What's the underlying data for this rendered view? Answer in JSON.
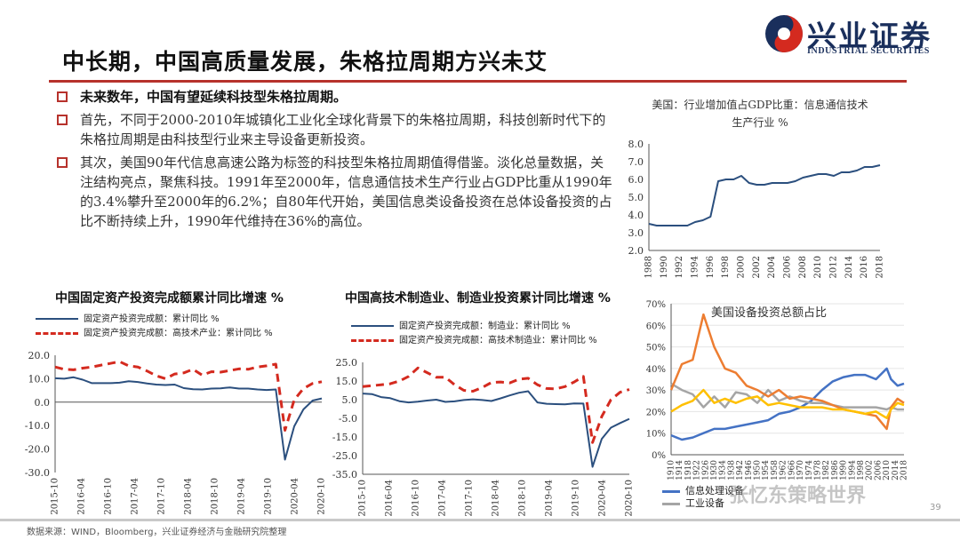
{
  "header": {
    "title": "中长期，中国高质量发展，朱格拉周期方兴未艾",
    "logo_cn": "兴业证券",
    "logo_en": "INDUSTRIAL SECURITIES"
  },
  "bullets": [
    "未来数年，中国有望延续科技型朱格拉周期。",
    "首先，不同于2000-2010年城镇化工业化全球化背景下的朱格拉周期，科技创新时代下的朱格拉周期是由科技型行业来主导设备更新投资。",
    "其次，美国90年代信息高速公路为标签的科技型朱格拉周期值得借鉴。淡化总量数据，关注结构亮点，聚焦科技。1991年至2000年，信息通信技术生产行业占GDP比重从1990年的3.4%攀升至2000年的6.2%；自80年代开始，美国信息类设备投资在总体设备投资的占比不断持续上升，1990年代维持在36%的高位。"
  ],
  "footer": {
    "source": "数据来源：WIND，Bloomberg，兴业证券经济与金融研究院整理",
    "page": "39",
    "watermark": "张忆东策略世界"
  },
  "colors": {
    "navy": "#2b4f7e",
    "red": "#d42a1f",
    "blue": "#4472c4",
    "orange": "#ed7d31",
    "gray": "#a5a5a5",
    "yellow": "#ffc000",
    "accent": "#b7322c"
  },
  "chart_data": [
    {
      "id": "us_ict_gdp",
      "type": "line",
      "title": "美国：行业增加值占GDP比重：信息通信技术生产行业 %",
      "ylim": [
        2.0,
        8.0
      ],
      "yticks": [
        "2.0",
        "3.0",
        "4.0",
        "5.0",
        "6.0",
        "7.0",
        "8.0"
      ],
      "xticks": [
        "1988",
        "1990",
        "1992",
        "1994",
        "1996",
        "1998",
        "2000",
        "2002",
        "2004",
        "2006",
        "2008",
        "2010",
        "2012",
        "2014",
        "2016",
        "2018"
      ],
      "x": [
        1988,
        1989,
        1990,
        1991,
        1992,
        1993,
        1994,
        1995,
        1996,
        1997,
        1998,
        1999,
        2000,
        2001,
        2002,
        2003,
        2004,
        2005,
        2006,
        2007,
        2008,
        2009,
        2010,
        2011,
        2012,
        2013,
        2014,
        2015,
        2016,
        2017,
        2018
      ],
      "values": [
        3.5,
        3.4,
        3.4,
        3.4,
        3.4,
        3.4,
        3.6,
        3.7,
        3.9,
        5.9,
        6.0,
        6.0,
        6.2,
        5.8,
        5.7,
        5.7,
        5.8,
        5.8,
        5.8,
        5.9,
        6.1,
        6.2,
        6.3,
        6.3,
        6.2,
        6.4,
        6.4,
        6.5,
        6.7,
        6.7,
        6.8
      ]
    },
    {
      "id": "cn_fai",
      "type": "line",
      "title": "中国固定资产投资完成额累计同比增速 %",
      "ylim": [
        -30.0,
        20.0
      ],
      "yticks": [
        "20.0",
        "10.0",
        "0.0",
        "-10.0",
        "-20.0",
        "-30.0"
      ],
      "xticks": [
        "2015-10",
        "2016-04",
        "2016-10",
        "2017-04",
        "2017-10",
        "2018-04",
        "2018-10",
        "2019-04",
        "2019-10",
        "2020-04",
        "2020-10"
      ],
      "series": [
        {
          "name": "固定资产投资完成额：累计同比 %",
          "color": "#2b4f7e",
          "dash": false,
          "values": [
            10.2,
            10.0,
            10.6,
            9.6,
            8.1,
            8.1,
            8.1,
            8.3,
            8.9,
            8.6,
            8.0,
            7.5,
            7.3,
            7.5,
            6.0,
            5.5,
            5.4,
            5.8,
            5.9,
            6.3,
            5.8,
            5.8,
            5.4,
            5.2,
            5.4,
            -24.5,
            -10.3,
            -3.1,
            0.7,
            1.6
          ]
        },
        {
          "name": "固定资产投资完成额：高技术产业：累计同比 %",
          "color": "#d42a1f",
          "dash": true,
          "values": [
            15.0,
            14.0,
            13.8,
            14.5,
            15.0,
            15.8,
            16.5,
            17.3,
            15.5,
            15.0,
            13.3,
            11.3,
            10.0,
            12.0,
            12.5,
            14.0,
            11.5,
            13.0,
            12.8,
            13.5,
            14.2,
            14.0,
            15.0,
            15.5,
            16.2,
            -12.0,
            1.0,
            5.8,
            8.0,
            8.7
          ]
        }
      ]
    },
    {
      "id": "cn_hitech_mfg",
      "type": "line",
      "title": "中国高技术制造业、制造业投资累计同比增速 %",
      "ylim": [
        -35.0,
        25.0
      ],
      "yticks": [
        "25.0",
        "15.0",
        "5.0",
        "-5.0",
        "-15.0",
        "-25.0",
        "-35.0"
      ],
      "xticks": [
        "2015-10",
        "2016-04",
        "2016-10",
        "2017-04",
        "2017-10",
        "2018-04",
        "2018-10",
        "2019-04",
        "2019-10",
        "2020-04",
        "2020-10"
      ],
      "series": [
        {
          "name": "固定资产投资完成额：制造业：累计同比 %",
          "color": "#2b4f7e",
          "dash": false,
          "values": [
            8.3,
            8.0,
            6.4,
            5.8,
            4.2,
            3.5,
            3.9,
            4.5,
            5.0,
            3.8,
            4.1,
            4.8,
            5.2,
            4.8,
            4.3,
            5.7,
            7.3,
            8.7,
            9.5,
            3.5,
            2.8,
            2.6,
            2.5,
            3.0,
            2.9,
            -31.0,
            -16.0,
            -10.0,
            -7.5,
            -5.3
          ]
        },
        {
          "name": "固定资产投资完成额：高技术制造业：累计同比 %",
          "color": "#d42a1f",
          "dash": true,
          "values": [
            12.0,
            12.5,
            13.0,
            13.5,
            15.0,
            17.5,
            22.0,
            19.5,
            17.0,
            17.0,
            13.0,
            10.0,
            9.5,
            11.5,
            14.2,
            14.5,
            14.0,
            16.0,
            16.5,
            13.0,
            11.0,
            10.8,
            12.0,
            14.5,
            17.5,
            -18.0,
            -4.0,
            5.0,
            9.0,
            10.5
          ]
        }
      ]
    },
    {
      "id": "us_equip_share",
      "type": "line",
      "title": "美国设备投资总额占比",
      "ylim": [
        0,
        70
      ],
      "yticks": [
        "70%",
        "60%",
        "50%",
        "40%",
        "30%",
        "20%",
        "10%",
        "0%"
      ],
      "xticks": [
        "1910",
        "1914",
        "1918",
        "1922",
        "1926",
        "1930",
        "1934",
        "1938",
        "1942",
        "1946",
        "1950",
        "1954",
        "1958",
        "1962",
        "1966",
        "1970",
        "1974",
        "1978",
        "1982",
        "1986",
        "1990",
        "1994",
        "1998",
        "2002",
        "2006",
        "2010",
        "2014",
        "2018"
      ],
      "x": [
        1910,
        1915,
        1920,
        1925,
        1930,
        1935,
        1940,
        1945,
        1950,
        1955,
        1960,
        1965,
        1970,
        1975,
        1980,
        1985,
        1990,
        1995,
        2000,
        2005,
        2010,
        2012,
        2015,
        2018
      ],
      "series": [
        {
          "name": "信息处理设备",
          "color": "#4472c4",
          "values": [
            9,
            7,
            8,
            10,
            12,
            12,
            13,
            14,
            15,
            16,
            19,
            20,
            22,
            25,
            30,
            34,
            36,
            37,
            37,
            35,
            40,
            35,
            32,
            33
          ]
        },
        {
          "name": "工业设备",
          "color": "#a5a5a5",
          "values": [
            33,
            30,
            28,
            22,
            27,
            22,
            29,
            28,
            24,
            30,
            25,
            27,
            25,
            24,
            24,
            23,
            22,
            22,
            22,
            22,
            21,
            22,
            21,
            21
          ]
        },
        {
          "name": "",
          "color": "#ed7d31",
          "values": [
            30,
            42,
            44,
            65,
            50,
            40,
            38,
            32,
            30,
            27,
            30,
            26,
            27,
            26,
            25,
            23,
            21,
            20,
            19,
            18,
            12,
            22,
            26,
            24
          ]
        },
        {
          "name": "",
          "color": "#ffc000",
          "values": [
            20,
            23,
            25,
            30,
            24,
            26,
            24,
            26,
            27,
            23,
            24,
            23,
            22,
            22,
            22,
            21,
            21,
            20,
            19,
            20,
            17,
            21,
            24,
            23
          ]
        }
      ]
    }
  ]
}
